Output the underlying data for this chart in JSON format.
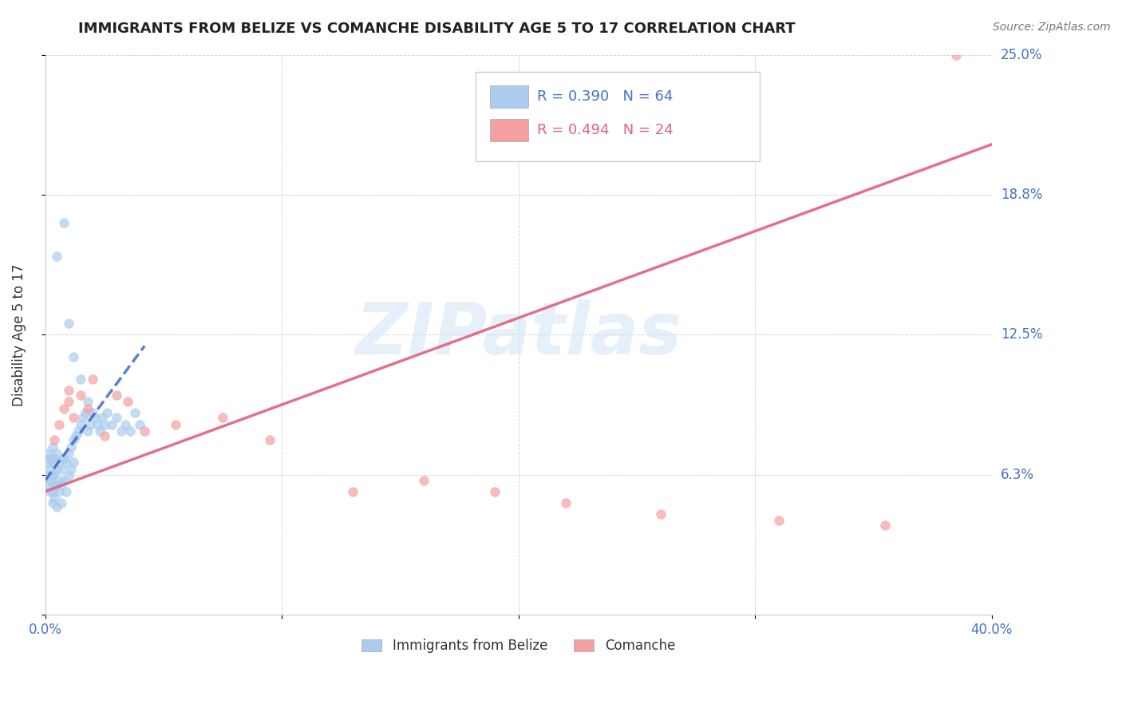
{
  "title": "IMMIGRANTS FROM BELIZE VS COMANCHE DISABILITY AGE 5 TO 17 CORRELATION CHART",
  "source": "Source: ZipAtlas.com",
  "ylabel": "Disability Age 5 to 17",
  "xlim": [
    0.0,
    0.4
  ],
  "ylim": [
    0.0,
    0.25
  ],
  "xticks": [
    0.0,
    0.1,
    0.2,
    0.3,
    0.4
  ],
  "xticklabels": [
    "0.0%",
    "",
    "",
    "",
    "40.0%"
  ],
  "yticks": [
    0.0,
    0.0625,
    0.125,
    0.1875,
    0.25
  ],
  "yticklabels_right": [
    "",
    "6.3%",
    "12.5%",
    "18.8%",
    "25.0%"
  ],
  "legend_entries": [
    {
      "label": "R = 0.390   N = 64",
      "color": "#7eb8e8"
    },
    {
      "label": "R = 0.494   N = 24",
      "color": "#f08080"
    }
  ],
  "legend_labels": [
    "Immigrants from Belize",
    "Comanche"
  ],
  "watermark": "ZIPatlas",
  "tick_color": "#4472c4",
  "grid_color": "#b8b8b8",
  "background_color": "#ffffff",
  "blue_scatter_x": [
    0.001,
    0.001,
    0.001,
    0.001,
    0.002,
    0.002,
    0.002,
    0.002,
    0.003,
    0.003,
    0.003,
    0.003,
    0.003,
    0.004,
    0.004,
    0.004,
    0.004,
    0.005,
    0.005,
    0.005,
    0.005,
    0.006,
    0.006,
    0.006,
    0.007,
    0.007,
    0.007,
    0.008,
    0.008,
    0.009,
    0.009,
    0.01,
    0.01,
    0.011,
    0.011,
    0.012,
    0.012,
    0.013,
    0.014,
    0.015,
    0.016,
    0.017,
    0.018,
    0.019,
    0.02,
    0.021,
    0.022,
    0.023,
    0.024,
    0.025,
    0.026,
    0.028,
    0.03,
    0.032,
    0.034,
    0.036,
    0.038,
    0.04,
    0.005,
    0.008,
    0.01,
    0.012,
    0.015,
    0.018
  ],
  "blue_scatter_y": [
    0.068,
    0.072,
    0.062,
    0.058,
    0.065,
    0.07,
    0.06,
    0.055,
    0.075,
    0.068,
    0.062,
    0.055,
    0.05,
    0.07,
    0.063,
    0.057,
    0.052,
    0.072,
    0.065,
    0.058,
    0.048,
    0.068,
    0.06,
    0.055,
    0.065,
    0.058,
    0.05,
    0.07,
    0.06,
    0.068,
    0.055,
    0.072,
    0.062,
    0.075,
    0.065,
    0.078,
    0.068,
    0.08,
    0.082,
    0.085,
    0.088,
    0.09,
    0.082,
    0.085,
    0.09,
    0.088,
    0.085,
    0.082,
    0.088,
    0.085,
    0.09,
    0.085,
    0.088,
    0.082,
    0.085,
    0.082,
    0.09,
    0.085,
    0.16,
    0.175,
    0.13,
    0.115,
    0.105,
    0.095
  ],
  "pink_scatter_x": [
    0.004,
    0.006,
    0.008,
    0.01,
    0.012,
    0.015,
    0.018,
    0.025,
    0.03,
    0.035,
    0.042,
    0.055,
    0.075,
    0.095,
    0.13,
    0.16,
    0.19,
    0.22,
    0.26,
    0.31,
    0.355,
    0.385,
    0.01,
    0.02
  ],
  "pink_scatter_y": [
    0.078,
    0.085,
    0.092,
    0.095,
    0.088,
    0.098,
    0.092,
    0.08,
    0.098,
    0.095,
    0.082,
    0.085,
    0.088,
    0.078,
    0.055,
    0.06,
    0.055,
    0.05,
    0.045,
    0.042,
    0.04,
    0.25,
    0.1,
    0.105
  ],
  "blue_trend_x": [
    0.0,
    0.042
  ],
  "blue_trend_y": [
    0.06,
    0.12
  ],
  "pink_trend_x": [
    0.0,
    0.4
  ],
  "pink_trend_y": [
    0.055,
    0.21
  ],
  "blue_color": "#aaccee",
  "pink_color": "#f4a0a0",
  "blue_line_color": "#3060c0",
  "pink_line_color": "#e06080"
}
